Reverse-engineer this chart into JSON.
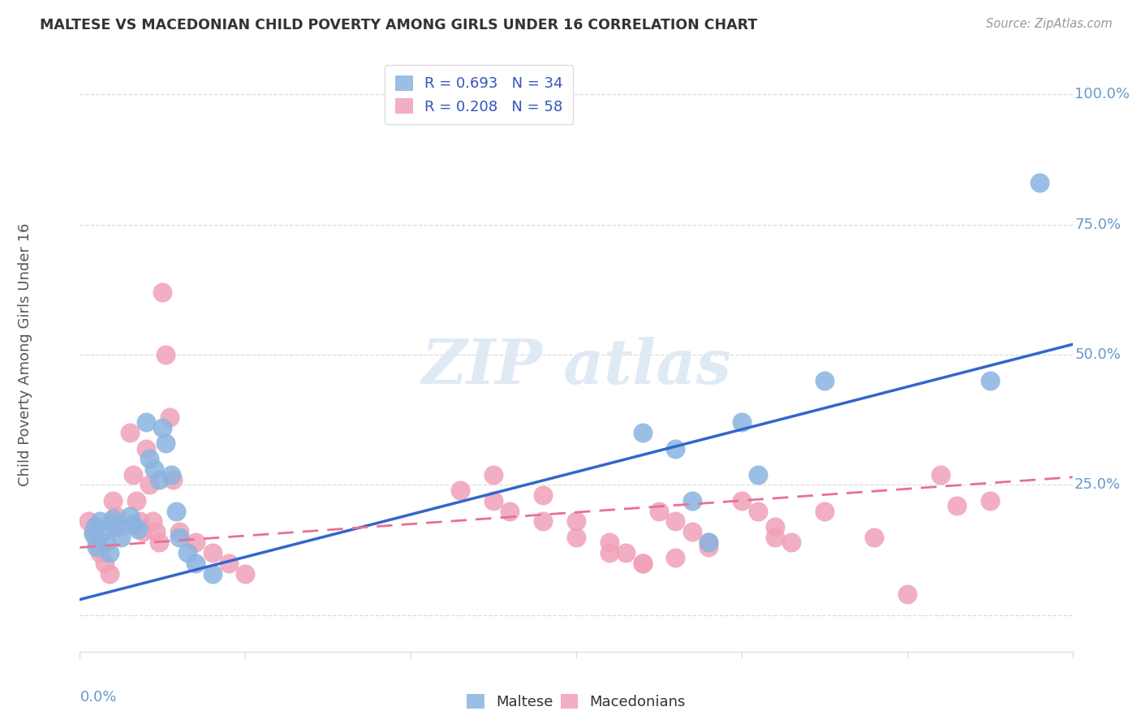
{
  "title": "MALTESE VS MACEDONIAN CHILD POVERTY AMONG GIRLS UNDER 16 CORRELATION CHART",
  "source": "Source: ZipAtlas.com",
  "ylabel": "Child Poverty Among Girls Under 16",
  "xmin": 0.0,
  "xmax": 0.06,
  "ymin": -0.07,
  "ymax": 1.07,
  "maltese_color": "#8ab4e0",
  "macedonian_color": "#f0a0b8",
  "maltese_line_color": "#3366cc",
  "macedonian_line_color": "#e87090",
  "axis_color": "#6699cc",
  "grid_color": "#dddddd",
  "title_color": "#333333",
  "maltese_R": "0.693",
  "maltese_N": "34",
  "macedonian_R": "0.208",
  "macedonian_N": "58",
  "maltese_trend_x": [
    0.0,
    0.06
  ],
  "maltese_trend_y": [
    0.03,
    0.52
  ],
  "macedonian_trend_x": [
    0.0,
    0.06
  ],
  "macedonian_trend_y": [
    0.13,
    0.265
  ],
  "maltese_scatter": [
    [
      0.0008,
      0.155
    ],
    [
      0.0009,
      0.17
    ],
    [
      0.001,
      0.13
    ],
    [
      0.0012,
      0.18
    ],
    [
      0.0014,
      0.16
    ],
    [
      0.0016,
      0.14
    ],
    [
      0.0018,
      0.12
    ],
    [
      0.002,
      0.185
    ],
    [
      0.0022,
      0.17
    ],
    [
      0.0025,
      0.15
    ],
    [
      0.003,
      0.19
    ],
    [
      0.0032,
      0.175
    ],
    [
      0.0035,
      0.165
    ],
    [
      0.004,
      0.37
    ],
    [
      0.0042,
      0.3
    ],
    [
      0.0045,
      0.28
    ],
    [
      0.0048,
      0.26
    ],
    [
      0.005,
      0.36
    ],
    [
      0.0052,
      0.33
    ],
    [
      0.0055,
      0.27
    ],
    [
      0.0058,
      0.2
    ],
    [
      0.006,
      0.15
    ],
    [
      0.0065,
      0.12
    ],
    [
      0.007,
      0.1
    ],
    [
      0.008,
      0.08
    ],
    [
      0.034,
      0.35
    ],
    [
      0.036,
      0.32
    ],
    [
      0.037,
      0.22
    ],
    [
      0.038,
      0.14
    ],
    [
      0.04,
      0.37
    ],
    [
      0.041,
      0.27
    ],
    [
      0.045,
      0.45
    ],
    [
      0.055,
      0.45
    ],
    [
      0.058,
      0.83
    ]
  ],
  "macedonian_scatter": [
    [
      0.0005,
      0.18
    ],
    [
      0.0008,
      0.16
    ],
    [
      0.001,
      0.14
    ],
    [
      0.0012,
      0.12
    ],
    [
      0.0015,
      0.1
    ],
    [
      0.0018,
      0.08
    ],
    [
      0.002,
      0.22
    ],
    [
      0.0022,
      0.19
    ],
    [
      0.0025,
      0.17
    ],
    [
      0.003,
      0.35
    ],
    [
      0.0032,
      0.27
    ],
    [
      0.0034,
      0.22
    ],
    [
      0.0036,
      0.18
    ],
    [
      0.0038,
      0.16
    ],
    [
      0.004,
      0.32
    ],
    [
      0.0042,
      0.25
    ],
    [
      0.0044,
      0.18
    ],
    [
      0.0046,
      0.16
    ],
    [
      0.0048,
      0.14
    ],
    [
      0.005,
      0.62
    ],
    [
      0.0052,
      0.5
    ],
    [
      0.0054,
      0.38
    ],
    [
      0.0056,
      0.26
    ],
    [
      0.006,
      0.16
    ],
    [
      0.007,
      0.14
    ],
    [
      0.008,
      0.12
    ],
    [
      0.009,
      0.1
    ],
    [
      0.01,
      0.08
    ],
    [
      0.025,
      0.27
    ],
    [
      0.028,
      0.23
    ],
    [
      0.03,
      0.18
    ],
    [
      0.032,
      0.14
    ],
    [
      0.033,
      0.12
    ],
    [
      0.034,
      0.1
    ],
    [
      0.035,
      0.2
    ],
    [
      0.036,
      0.18
    ],
    [
      0.037,
      0.16
    ],
    [
      0.038,
      0.14
    ],
    [
      0.04,
      0.22
    ],
    [
      0.041,
      0.2
    ],
    [
      0.042,
      0.17
    ],
    [
      0.043,
      0.14
    ],
    [
      0.045,
      0.2
    ],
    [
      0.048,
      0.15
    ],
    [
      0.05,
      0.04
    ],
    [
      0.052,
      0.27
    ],
    [
      0.053,
      0.21
    ],
    [
      0.055,
      0.22
    ],
    [
      0.042,
      0.15
    ],
    [
      0.038,
      0.13
    ],
    [
      0.036,
      0.11
    ],
    [
      0.034,
      0.1
    ],
    [
      0.032,
      0.12
    ],
    [
      0.03,
      0.15
    ],
    [
      0.028,
      0.18
    ],
    [
      0.026,
      0.2
    ],
    [
      0.025,
      0.22
    ],
    [
      0.023,
      0.24
    ]
  ]
}
